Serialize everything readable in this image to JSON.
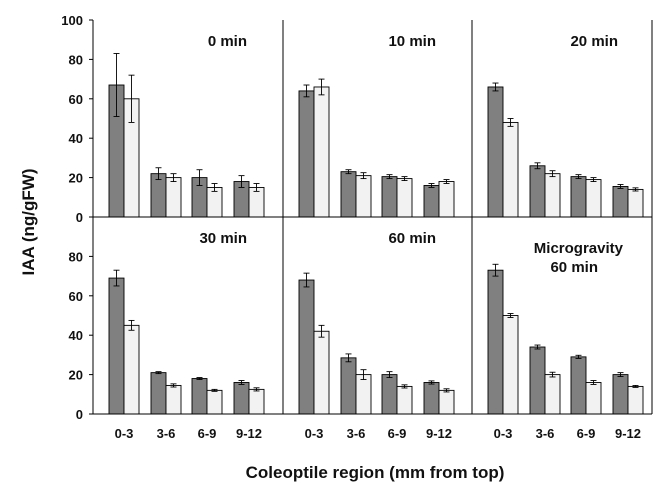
{
  "figure": {
    "ylabel": "IAA (ng/gFW)",
    "xlabel": "Coleoptile region (mm from top)"
  },
  "colors": {
    "series_dark": "#808080",
    "series_light": "#f2f2f2",
    "axis": "#000000"
  },
  "chart_data": [
    {
      "type": "bar",
      "title": "0 min",
      "categories": [
        "0-3",
        "3-6",
        "6-9",
        "9-12"
      ],
      "ylim": [
        0,
        100
      ],
      "yticks": [
        0,
        20,
        40,
        60,
        80,
        100
      ],
      "series": [
        {
          "values": [
            67,
            22,
            20,
            18
          ],
          "errors": [
            16,
            3,
            4,
            3
          ]
        },
        {
          "values": [
            60,
            20,
            15,
            15
          ],
          "errors": [
            12,
            2,
            2,
            2
          ]
        }
      ]
    },
    {
      "type": "bar",
      "title": "10 min",
      "categories": [
        "0-3",
        "3-6",
        "6-9",
        "9-12"
      ],
      "ylim": [
        0,
        100
      ],
      "series": [
        {
          "values": [
            64,
            23,
            20.5,
            16
          ],
          "errors": [
            3,
            1,
            1,
            1
          ]
        },
        {
          "values": [
            66,
            21,
            19.5,
            18
          ],
          "errors": [
            4,
            1.5,
            1,
            1
          ]
        }
      ]
    },
    {
      "type": "bar",
      "title": "20 min",
      "categories": [
        "0-3",
        "3-6",
        "6-9",
        "9-12"
      ],
      "ylim": [
        0,
        100
      ],
      "series": [
        {
          "values": [
            66,
            26,
            20.5,
            15.5
          ],
          "errors": [
            2,
            1.5,
            1,
            1
          ]
        },
        {
          "values": [
            48,
            22,
            19,
            14
          ],
          "errors": [
            2,
            1.5,
            1,
            0.8
          ]
        }
      ]
    },
    {
      "type": "bar",
      "title": "30 min",
      "categories": [
        "0-3",
        "3-6",
        "6-9",
        "9-12"
      ],
      "ylim": [
        0,
        100
      ],
      "yticks": [
        0,
        20,
        40,
        60,
        80
      ],
      "series": [
        {
          "values": [
            69,
            21,
            18,
            16
          ],
          "errors": [
            4,
            0.5,
            0.5,
            1
          ]
        },
        {
          "values": [
            45,
            14.5,
            12,
            12.5
          ],
          "errors": [
            2.5,
            0.8,
            0.5,
            0.8
          ]
        }
      ]
    },
    {
      "type": "bar",
      "title": "60 min",
      "categories": [
        "0-3",
        "3-6",
        "6-9",
        "9-12"
      ],
      "ylim": [
        0,
        100
      ],
      "series": [
        {
          "values": [
            68,
            28.5,
            20,
            16
          ],
          "errors": [
            3.5,
            2,
            1.5,
            0.8
          ]
        },
        {
          "values": [
            42,
            20,
            14,
            12
          ],
          "errors": [
            3,
            2.5,
            0.8,
            0.8
          ]
        }
      ]
    },
    {
      "type": "bar",
      "title": "Microgravity",
      "subtitle": "60 min",
      "categories": [
        "0-3",
        "3-6",
        "6-9",
        "9-12"
      ],
      "ylim": [
        0,
        100
      ],
      "series": [
        {
          "values": [
            73,
            34,
            29,
            20
          ],
          "errors": [
            3,
            1,
            0.8,
            1
          ]
        },
        {
          "values": [
            50,
            20,
            16,
            14
          ],
          "errors": [
            1,
            1.2,
            1,
            0.5
          ]
        }
      ]
    }
  ]
}
